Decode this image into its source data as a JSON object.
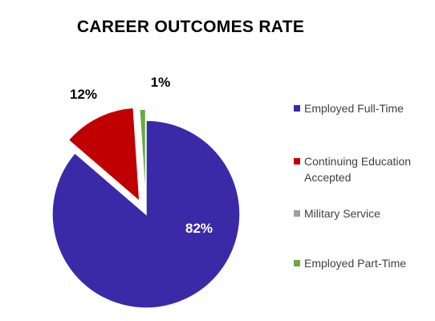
{
  "chart_data": {
    "type": "pie",
    "title": "CAREER OUTCOMES RATE",
    "slices": [
      {
        "label": "Employed Full-Time",
        "value": 82,
        "data_label": "82%",
        "color": "#3A2AA8"
      },
      {
        "label": "Continuing Education Accepted",
        "value": 12,
        "data_label": "12%",
        "color": "#C00000"
      },
      {
        "label": "Military Service",
        "value": 0,
        "data_label": "",
        "color": "#A0A0A0"
      },
      {
        "label": "Employed Part-Time",
        "value": 1,
        "data_label": "1%",
        "color": "#6AAA3A"
      }
    ],
    "legend_position": "right",
    "exploded": true
  }
}
